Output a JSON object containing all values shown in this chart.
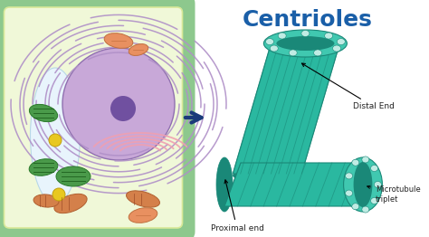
{
  "title": "Centrioles",
  "title_color": "#1a5fa8",
  "title_fontsize": 18,
  "title_fontstyle": "bold",
  "bg_color": "#ffffff",
  "arrow_color": "#1a3a7a",
  "label_distal": "Distal End",
  "label_proximal": "Proximal end",
  "label_microtubule": "Microtubule\ntriplet",
  "cell_outer_color": "#8dc88d",
  "cell_inner_color": "#f0f8d8",
  "cell_inner_border": "#d8e898",
  "vacuole_color": "#dceef8",
  "nucleus_color": "#c8a8d8",
  "nucleolus_color": "#7050a0",
  "er_color": "#b090c8",
  "chloroplast_color": "#4a9a4a",
  "mitochondria_color": "#d4804a",
  "golgi_color": "#f0a0b0",
  "centriole_dark": "#1a8878",
  "centriole_mid": "#2ab8a0",
  "centriole_light": "#50d0b8",
  "centriole_dot": "#c0ece4",
  "centriole_ring": "#40c8b0"
}
